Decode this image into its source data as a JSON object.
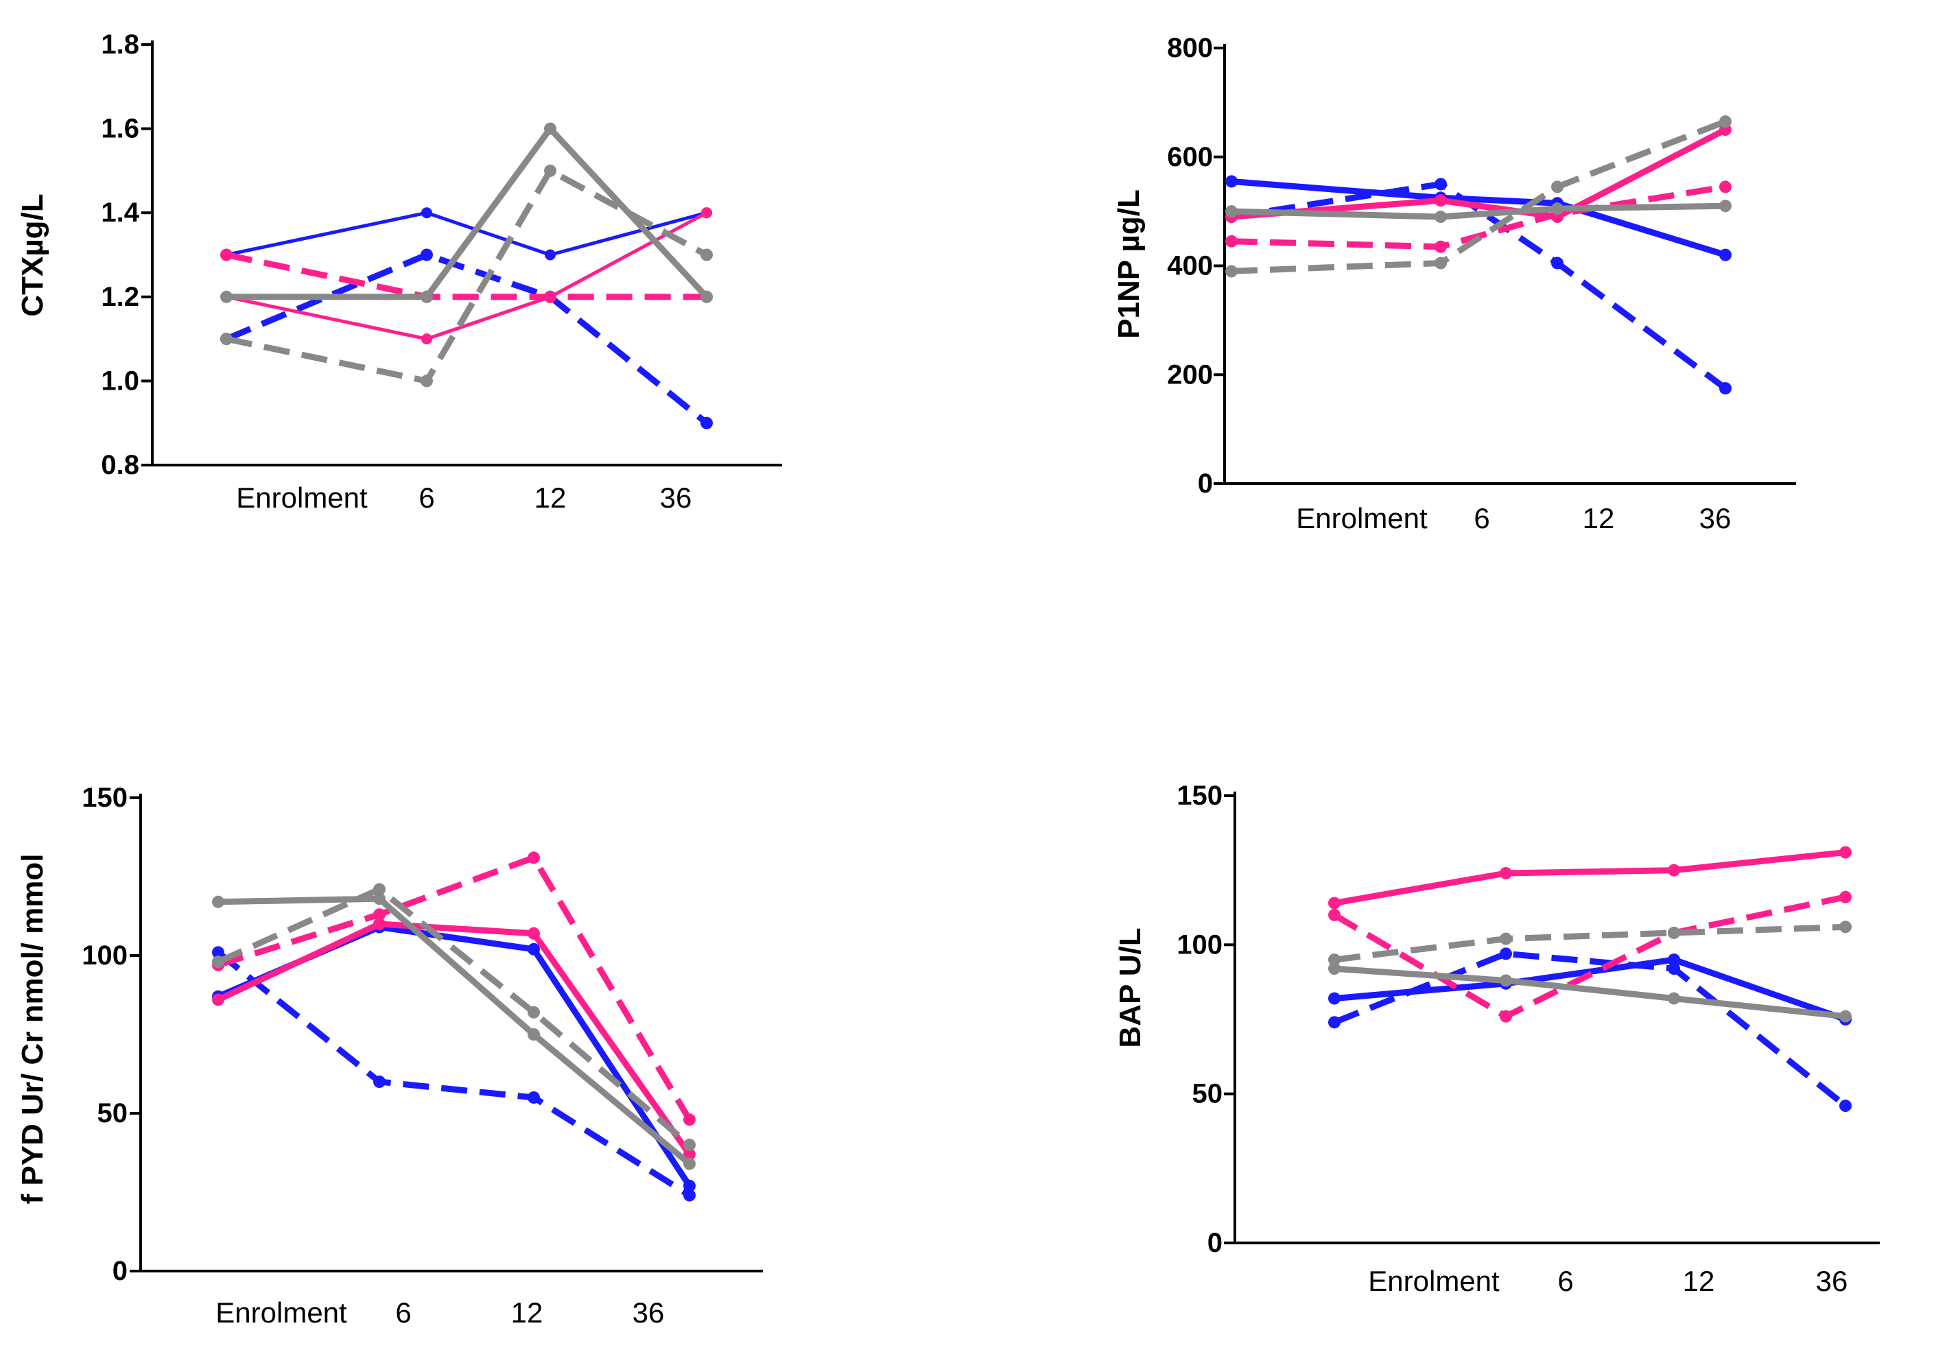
{
  "series_styles": {
    "blue_solid": {
      "color": "#1a1aff",
      "dashed": false,
      "thin": false
    },
    "blue_dashed": {
      "color": "#1a1aff",
      "dashed": true,
      "thin": false
    },
    "pink_solid": {
      "color": "#ff1f8c",
      "dashed": false,
      "thin": false
    },
    "pink_dashed": {
      "color": "#ff1f8c",
      "dashed": true,
      "thin": false
    },
    "gray_solid": {
      "color": "#888888",
      "dashed": false,
      "thin": false
    },
    "gray_dashed": {
      "color": "#888888",
      "dashed": true,
      "thin": false
    }
  },
  "chart_data": [
    {
      "type": "line",
      "title": "",
      "xlabel": "",
      "ylabel": "CTXµg/L",
      "categories": [
        "Enrolment",
        "6",
        "12",
        "36"
      ],
      "ylim": [
        0.8,
        1.8
      ],
      "yticks": [
        "0.8",
        "1.0",
        "1.2",
        "1.4",
        "1.6",
        "1.8"
      ],
      "series": [
        {
          "name": "blue_solid",
          "values": [
            1.3,
            1.4,
            1.3,
            1.4
          ],
          "thin": true
        },
        {
          "name": "blue_dashed",
          "values": [
            1.1,
            1.3,
            1.2,
            0.9
          ]
        },
        {
          "name": "pink_solid",
          "values": [
            1.2,
            1.1,
            1.2,
            1.4
          ],
          "thin": true
        },
        {
          "name": "pink_dashed",
          "values": [
            1.3,
            1.2,
            1.2,
            1.2
          ]
        },
        {
          "name": "gray_solid",
          "values": [
            1.2,
            1.2,
            1.6,
            1.2
          ]
        },
        {
          "name": "gray_dashed",
          "values": [
            1.1,
            1.0,
            1.5,
            1.3
          ]
        }
      ]
    },
    {
      "type": "line",
      "title": "",
      "xlabel": "",
      "ylabel": "P1NP µg/L",
      "categories": [
        "Enrolment",
        "6",
        "12",
        "36"
      ],
      "ylim": [
        0,
        800
      ],
      "yticks": [
        "0",
        "200",
        "400",
        "600",
        "800"
      ],
      "series": [
        {
          "name": "blue_solid",
          "values": [
            555,
            525,
            515,
            420
          ]
        },
        {
          "name": "blue_dashed",
          "values": [
            490,
            550,
            405,
            175
          ]
        },
        {
          "name": "pink_solid",
          "values": [
            490,
            520,
            490,
            650
          ]
        },
        {
          "name": "pink_dashed",
          "values": [
            445,
            435,
            495,
            545
          ]
        },
        {
          "name": "gray_solid",
          "values": [
            500,
            490,
            505,
            510
          ]
        },
        {
          "name": "gray_dashed",
          "values": [
            390,
            405,
            545,
            665
          ]
        }
      ]
    },
    {
      "type": "line",
      "title": "",
      "xlabel": "",
      "ylabel": "f PYD Ur/ Cr nmol/ mmol",
      "categories": [
        "Enrolment",
        "6",
        "12",
        "36"
      ],
      "ylim": [
        0,
        150
      ],
      "yticks": [
        "0",
        "50",
        "100",
        "150"
      ],
      "series": [
        {
          "name": "blue_solid",
          "values": [
            87,
            109,
            102,
            27
          ]
        },
        {
          "name": "blue_dashed",
          "values": [
            101,
            60,
            55,
            24
          ]
        },
        {
          "name": "pink_solid",
          "values": [
            86,
            110,
            107,
            37
          ]
        },
        {
          "name": "pink_dashed",
          "values": [
            97,
            113,
            131,
            48
          ]
        },
        {
          "name": "gray_solid",
          "values": [
            117,
            118,
            75,
            34
          ]
        },
        {
          "name": "gray_dashed",
          "values": [
            98,
            121,
            82,
            40
          ]
        }
      ]
    },
    {
      "type": "line",
      "title": "",
      "xlabel": "",
      "ylabel": "BAP U/L",
      "categories": [
        "Enrolment",
        "6",
        "12",
        "36"
      ],
      "ylim": [
        0,
        150
      ],
      "yticks": [
        "0",
        "50",
        "100",
        "150"
      ],
      "series": [
        {
          "name": "blue_solid",
          "values": [
            82,
            87,
            95,
            75
          ]
        },
        {
          "name": "blue_dashed",
          "values": [
            74,
            97,
            92,
            46
          ]
        },
        {
          "name": "pink_solid",
          "values": [
            114,
            124,
            125,
            131
          ]
        },
        {
          "name": "pink_dashed",
          "values": [
            110,
            76,
            104,
            116
          ]
        },
        {
          "name": "gray_solid",
          "values": [
            92,
            88,
            82,
            76
          ]
        },
        {
          "name": "gray_dashed",
          "values": [
            95,
            102,
            104,
            106
          ]
        }
      ]
    }
  ]
}
